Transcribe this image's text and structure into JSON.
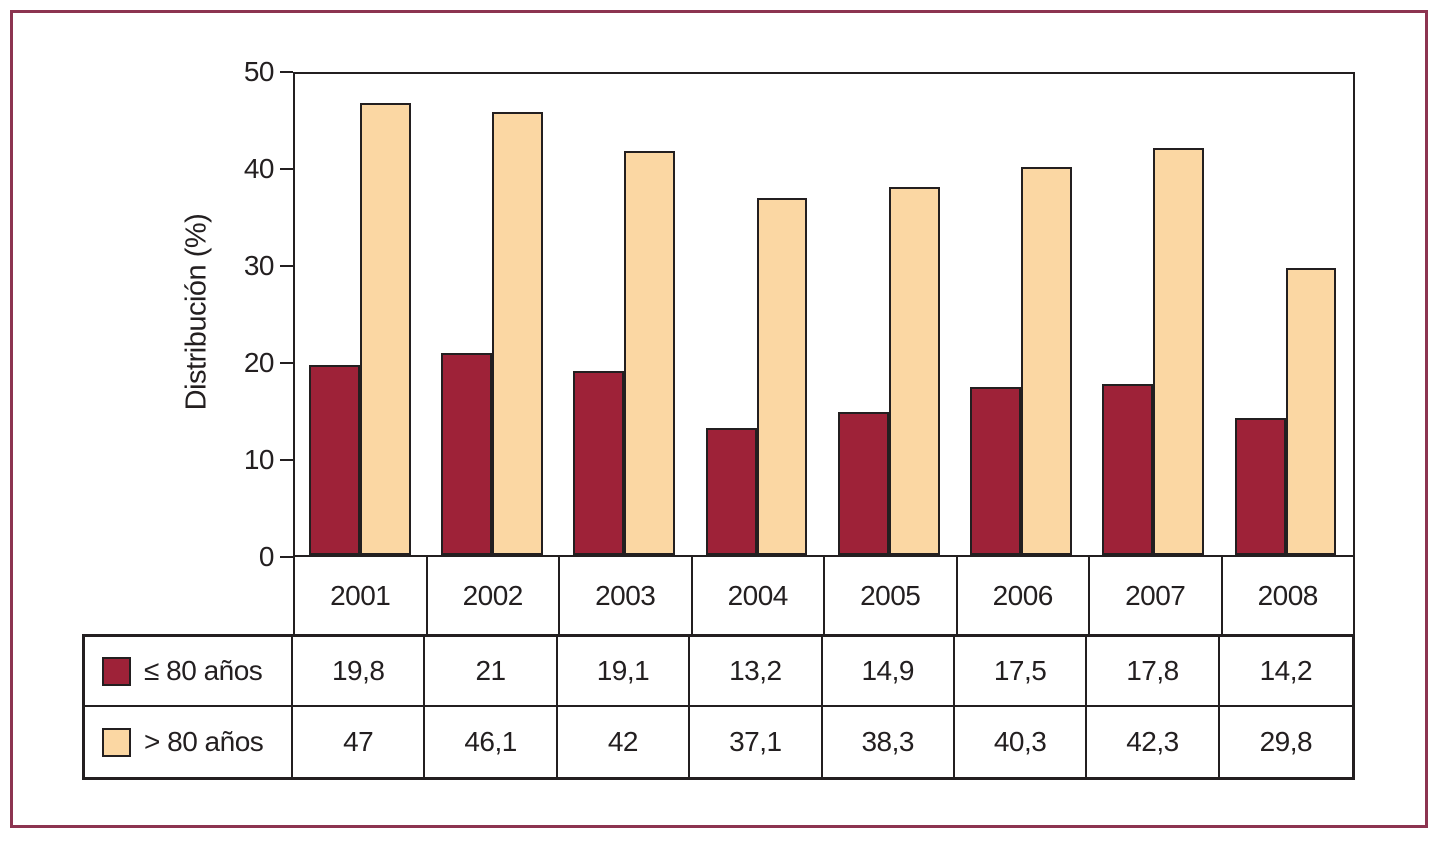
{
  "chart_data": {
    "type": "bar",
    "title": "",
    "xlabel": "",
    "ylabel": "Distribución (%)",
    "ylim": [
      0,
      50
    ],
    "yticks": [
      0,
      10,
      20,
      30,
      40,
      50
    ],
    "grid": false,
    "legend_position": "table-below",
    "categories": [
      "2001",
      "2002",
      "2003",
      "2004",
      "2005",
      "2006",
      "2007",
      "2008"
    ],
    "series": [
      {
        "name": "≤ 80 años",
        "color": "#9e2238",
        "values": [
          19.8,
          21,
          19.1,
          13.2,
          14.9,
          17.5,
          17.8,
          14.2
        ],
        "display_values": [
          "19,8",
          "21",
          "19,1",
          "13,2",
          "14,9",
          "17,5",
          "17,8",
          "14,2"
        ]
      },
      {
        "name": "> 80 años",
        "color": "#fbd7a3",
        "values": [
          47,
          46.1,
          42,
          37.1,
          38.3,
          40.3,
          42.3,
          29.8
        ],
        "display_values": [
          "47",
          "46,1",
          "42",
          "37,1",
          "38,3",
          "40,3",
          "42,3",
          "29,8"
        ]
      }
    ]
  },
  "colors": {
    "frame_border": "#8c3450",
    "axis_line": "#231f20",
    "text": "#231f20",
    "background": "#ffffff"
  }
}
